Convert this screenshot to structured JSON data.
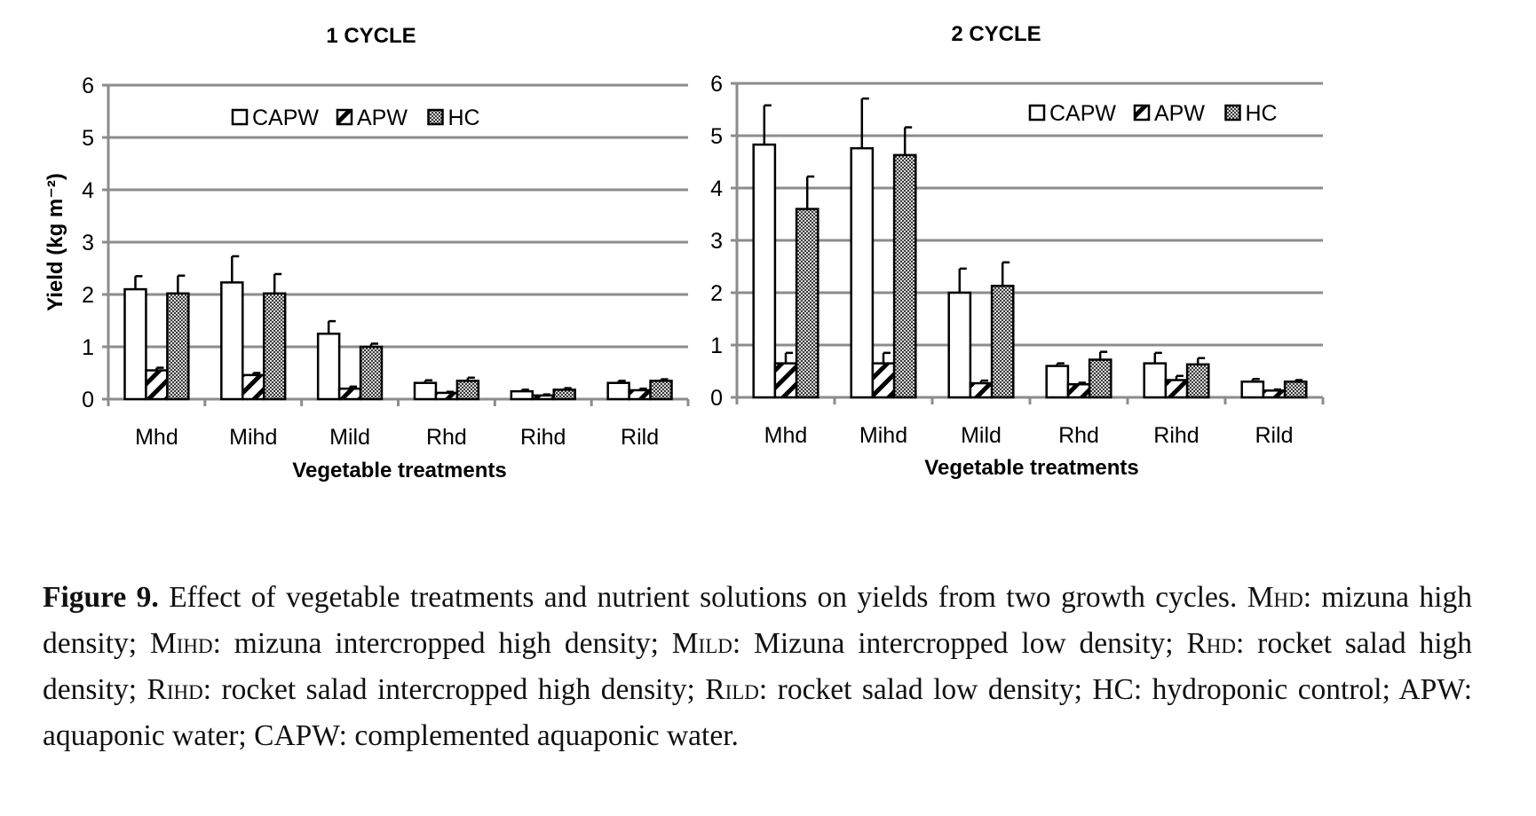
{
  "chart_data": [
    {
      "type": "bar",
      "title": "1 CYCLE",
      "xlabel": "Vegetable treatments",
      "ylabel": "Yield (kg m⁻²)",
      "ylim": [
        0,
        6
      ],
      "yticks": [
        0,
        1,
        2,
        3,
        4,
        5,
        6
      ],
      "grid": true,
      "legend": "top-center",
      "categories": [
        "Mhd",
        "Mihd",
        "Mild",
        "Rhd",
        "Rihd",
        "Rild"
      ],
      "series": [
        {
          "name": "CAPW",
          "pattern": "white",
          "values": [
            2.1,
            2.23,
            1.25,
            0.31,
            0.15,
            0.31
          ],
          "errors": [
            0.25,
            0.5,
            0.24,
            0.05,
            0.03,
            0.04
          ]
        },
        {
          "name": "APW",
          "pattern": "hatched",
          "values": [
            0.55,
            0.46,
            0.2,
            0.12,
            0.07,
            0.17
          ],
          "errors": [
            0.05,
            0.04,
            0.04,
            0.02,
            0.02,
            0.03
          ]
        },
        {
          "name": "HC",
          "pattern": "checkered",
          "values": [
            2.02,
            2.02,
            1.0,
            0.35,
            0.18,
            0.35
          ],
          "errors": [
            0.34,
            0.37,
            0.06,
            0.06,
            0.03,
            0.03
          ]
        }
      ]
    },
    {
      "type": "bar",
      "title": "2 CYCLE",
      "xlabel": "Vegetable treatments",
      "ylabel": "",
      "ylim": [
        0,
        6
      ],
      "yticks": [
        0,
        1,
        2,
        3,
        4,
        5,
        6
      ],
      "grid": true,
      "legend": "top-right",
      "categories": [
        "Mhd",
        "Mihd",
        "Mild",
        "Rhd",
        "Rihd",
        "Rild"
      ],
      "series": [
        {
          "name": "CAPW",
          "pattern": "white",
          "values": [
            4.83,
            4.76,
            2.0,
            0.6,
            0.65,
            0.3
          ],
          "errors": [
            0.75,
            0.95,
            0.46,
            0.05,
            0.2,
            0.05
          ]
        },
        {
          "name": "APW",
          "pattern": "hatched",
          "values": [
            0.65,
            0.65,
            0.27,
            0.25,
            0.33,
            0.13
          ],
          "errors": [
            0.2,
            0.2,
            0.05,
            0.03,
            0.08,
            0.02
          ]
        },
        {
          "name": "HC",
          "pattern": "checkered",
          "values": [
            3.6,
            4.63,
            2.13,
            0.72,
            0.63,
            0.3
          ],
          "errors": [
            0.62,
            0.53,
            0.45,
            0.15,
            0.12,
            0.03
          ]
        }
      ]
    }
  ],
  "caption": {
    "label": "Figure 9.",
    "text_1": " Effect of vegetable treatments and nutrient solutions on yields from two growth cycles. ",
    "mhd": "Mhd",
    "text_2": ": mizuna high density; ",
    "mihd": "Mihd",
    "text_3": ": mizuna intercropped high density; ",
    "mild": "Mild",
    "text_4": ": Mizuna intercropped low density; ",
    "rhd": "Rhd",
    "text_5": ": rocket salad high density; ",
    "rihd": "Rihd",
    "text_6": ": rocket salad intercropped high density; ",
    "rild": "Rild",
    "text_7": ": rocket salad low density; HC: hydroponic control; APW: aquaponic water; CAPW: complemented aquaponic water."
  }
}
